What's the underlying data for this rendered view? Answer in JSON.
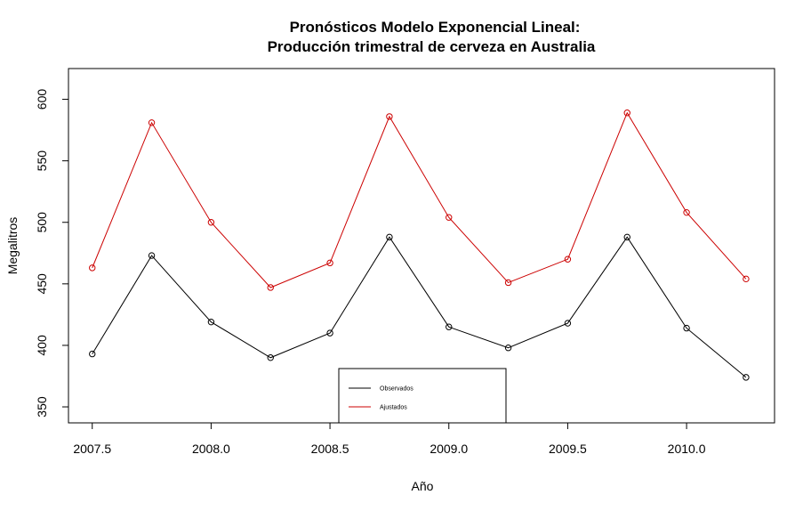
{
  "chart_data": {
    "type": "line",
    "title": "Pronósticos Modelo Exponencial Lineal:",
    "subtitle": "Producción trimestral de cerveza en Australia",
    "xlabel": "Año",
    "ylabel": "Megalitros",
    "xlim": [
      2007.4,
      2010.37
    ],
    "ylim": [
      337,
      625
    ],
    "x_ticks": [
      2007.5,
      2008.0,
      2008.5,
      2009.0,
      2009.5,
      2010.0
    ],
    "x_tick_labels": [
      "2007.5",
      "2008.0",
      "2008.5",
      "2009.0",
      "2009.5",
      "2010.0"
    ],
    "y_ticks": [
      350,
      400,
      450,
      500,
      550,
      600
    ],
    "y_tick_labels": [
      "350",
      "400",
      "450",
      "500",
      "550",
      "600"
    ],
    "grid": false,
    "legend_position": "bottom-center",
    "x": [
      2007.5,
      2007.75,
      2008.0,
      2008.25,
      2008.5,
      2008.75,
      2009.0,
      2009.25,
      2009.5,
      2009.75,
      2010.0,
      2010.25
    ],
    "series": [
      {
        "name": "Observados",
        "color": "#000000",
        "values": [
          393,
          473,
          419,
          390,
          410,
          488,
          415,
          398,
          418,
          488,
          414,
          374
        ]
      },
      {
        "name": "Ajustados",
        "color": "#cc0000",
        "values": [
          463,
          581,
          500,
          447,
          467,
          586,
          504,
          451,
          470,
          589,
          508,
          454
        ]
      }
    ]
  }
}
